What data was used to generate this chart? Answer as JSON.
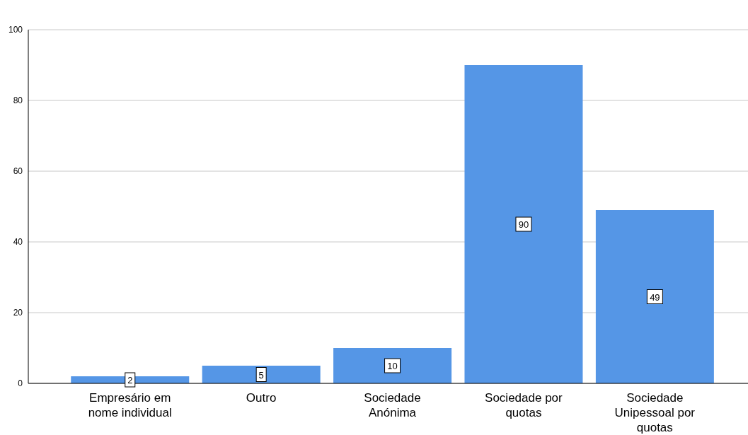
{
  "chart_data": {
    "type": "bar",
    "categories": [
      "Empresário em nome individual",
      "Outro",
      "Sociedade Anónima",
      "Sociedade por quotas",
      "Sociedade Unipessoal por quotas"
    ],
    "values": [
      2,
      5,
      10,
      90,
      49
    ],
    "color": "#5596e6",
    "ylim": [
      0,
      100
    ],
    "yticks": [
      0,
      20,
      40,
      60,
      80,
      100
    ],
    "grid": "y",
    "data_labels": true
  }
}
